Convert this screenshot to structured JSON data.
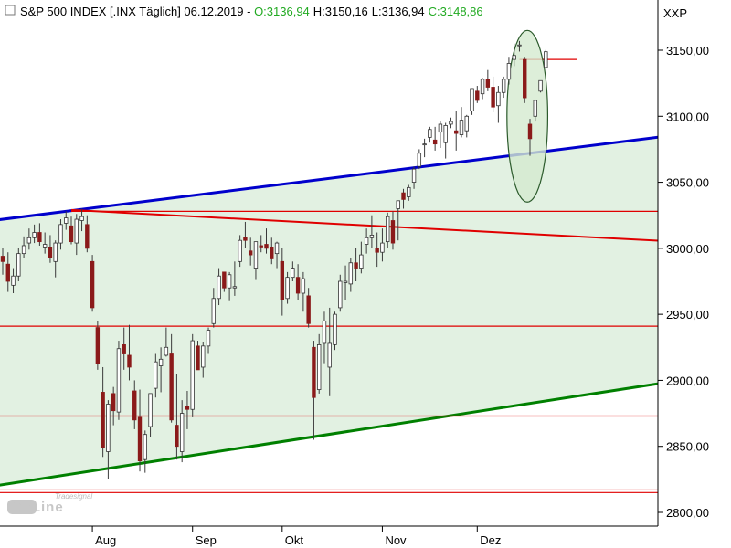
{
  "header": {
    "symbol": "S&P 500 INDEX [.INX  Täglich] 06.12.2019 - ",
    "open": "O:3136,94",
    "high": "H:3150,16",
    "low": "L:3136,94",
    "close": "C:3148,86",
    "exchange": "XXP"
  },
  "branding": {
    "logo_text": "OnLine",
    "logo_sub": "Tradesignal"
  },
  "colors": {
    "up": "#ffffff",
    "down": "#8b1a1a",
    "wick": "#3a3a3a",
    "blue_trend": "#0000cc",
    "green_trend": "#008000",
    "red_line": "#e00000",
    "fill": "#e2f1e2",
    "ellipse_fill": "#d4ead0"
  },
  "chart_data": {
    "type": "candlestick",
    "title": "S&P 500 INDEX [.INX  Täglich] 06.12.2019",
    "y_axis": {
      "min": 2800,
      "max": 3150,
      "ticks": [
        "2800,00",
        "2850,00",
        "2900,00",
        "2950,00",
        "3000,00",
        "3050,00",
        "3100,00",
        "3150,00"
      ],
      "position": "right"
    },
    "x_axis": {
      "labels": [
        "Aug",
        "Sep",
        "Okt",
        "Nov",
        "Dez"
      ]
    },
    "candles": [
      [
        2994,
        3000,
        2980,
        2990
      ],
      [
        2988,
        2997,
        2967,
        2975
      ],
      [
        2972,
        2985,
        2966,
        2979
      ],
      [
        2979,
        3000,
        2975,
        2996
      ],
      [
        2996,
        3009,
        2993,
        3002
      ],
      [
        3004,
        3015,
        2999,
        3008
      ],
      [
        3008,
        3018,
        3004,
        3012
      ],
      [
        3012,
        3019,
        3002,
        3005
      ],
      [
        3001,
        3012,
        2996,
        3003
      ],
      [
        3001,
        3010,
        2989,
        2993
      ],
      [
        2990,
        3006,
        2978,
        3004
      ],
      [
        3004,
        3022,
        2999,
        3018
      ],
      [
        3019,
        3028,
        3014,
        3023
      ],
      [
        3017,
        3024,
        3003,
        3005
      ],
      [
        3004,
        3026,
        2995,
        3022
      ],
      [
        3021,
        3030,
        3013,
        3024
      ],
      [
        3018,
        3025,
        2997,
        3000
      ],
      [
        2990,
        2995,
        2952,
        2955
      ],
      [
        2940,
        2945,
        2908,
        2913
      ],
      [
        2891,
        2910,
        2842,
        2849
      ],
      [
        2846,
        2885,
        2825,
        2882
      ],
      [
        2890,
        2895,
        2866,
        2877
      ],
      [
        2876,
        2930,
        2870,
        2924
      ],
      [
        2927,
        2940,
        2908,
        2920
      ],
      [
        2919,
        2942,
        2900,
        2910
      ],
      [
        2892,
        2900,
        2863,
        2870
      ],
      [
        2872,
        2893,
        2831,
        2839
      ],
      [
        2840,
        2862,
        2830,
        2859
      ],
      [
        2865,
        2890,
        2857,
        2890
      ],
      [
        2894,
        2920,
        2887,
        2914
      ],
      [
        2911,
        2925,
        2891,
        2916
      ],
      [
        2919,
        2940,
        2918,
        2925
      ],
      [
        2920,
        2935,
        2868,
        2870
      ],
      [
        2866,
        2905,
        2840,
        2850
      ],
      [
        2846,
        2885,
        2838,
        2875
      ],
      [
        2880,
        2892,
        2863,
        2878
      ],
      [
        2878,
        2935,
        2872,
        2930
      ],
      [
        2926,
        2930,
        2908,
        2908
      ],
      [
        2910,
        2929,
        2902,
        2926
      ],
      [
        2926,
        2940,
        2920,
        2938
      ],
      [
        2943,
        2970,
        2940,
        2962
      ],
      [
        2962,
        2985,
        2957,
        2979
      ],
      [
        2982,
        2981,
        2967,
        2970
      ],
      [
        2970,
        2982,
        2960,
        2980
      ],
      [
        2970,
        2990,
        2964,
        2971
      ],
      [
        2990,
        3010,
        2986,
        3006
      ],
      [
        3008,
        3020,
        3000,
        3006
      ],
      [
        2998,
        3008,
        2987,
        2995
      ],
      [
        2985,
        3005,
        2976,
        3005
      ],
      [
        3002,
        3010,
        2997,
        3001
      ],
      [
        3003,
        3015,
        2996,
        3000
      ],
      [
        3001,
        3008,
        2988,
        2992
      ],
      [
        2996,
        3005,
        2985,
        3004
      ],
      [
        2990,
        3000,
        2949,
        2961
      ],
      [
        2962,
        2982,
        2958,
        2978
      ],
      [
        2978,
        2990,
        2975,
        2985
      ],
      [
        2978,
        2988,
        2961,
        2966
      ],
      [
        2966,
        2982,
        2952,
        2977
      ],
      [
        2964,
        2970,
        2940,
        2943
      ],
      [
        2925,
        2930,
        2855,
        2887
      ],
      [
        2893,
        2935,
        2890,
        2927
      ],
      [
        2928,
        2952,
        2913,
        2945
      ],
      [
        2910,
        2955,
        2888,
        2928
      ],
      [
        2927,
        2952,
        2923,
        2950
      ],
      [
        2955,
        2980,
        2952,
        2975
      ],
      [
        2974,
        2987,
        2961,
        2975
      ],
      [
        2973,
        2993,
        2967,
        2989
      ],
      [
        2989,
        3000,
        2975,
        2985
      ],
      [
        2985,
        3005,
        2981,
        2995
      ],
      [
        3003,
        3015,
        2996,
        3008
      ],
      [
        3008,
        3025,
        3000,
        3010
      ],
      [
        3000,
        3012,
        2986,
        2997
      ],
      [
        2997,
        3015,
        2990,
        3004
      ],
      [
        3005,
        3027,
        3000,
        3024
      ],
      [
        3021,
        3028,
        2999,
        3004
      ],
      [
        3030,
        3035,
        3006,
        3036
      ],
      [
        3042,
        3045,
        3030,
        3037
      ],
      [
        3039,
        3048,
        3036,
        3046
      ],
      [
        3050,
        3062,
        3045,
        3060
      ],
      [
        3062,
        3075,
        3060,
        3072
      ],
      [
        3079,
        3083,
        3069,
        3079
      ],
      [
        3084,
        3092,
        3080,
        3090
      ],
      [
        3082,
        3092,
        3074,
        3079
      ],
      [
        3088,
        3096,
        3076,
        3094
      ],
      [
        3080,
        3095,
        3068,
        3093
      ],
      [
        3094,
        3099,
        3091,
        3096
      ],
      [
        3089,
        3104,
        3074,
        3087
      ],
      [
        3086,
        3107,
        3084,
        3097
      ],
      [
        3089,
        3101,
        3084,
        3100
      ],
      [
        3104,
        3120,
        3101,
        3121
      ],
      [
        3119,
        3123,
        3110,
        3112
      ],
      [
        3117,
        3129,
        3113,
        3128
      ],
      [
        3128,
        3135,
        3119,
        3122
      ],
      [
        3122,
        3130,
        3103,
        3107
      ],
      [
        3108,
        3123,
        3095,
        3118
      ],
      [
        3118,
        3130,
        3114,
        3128
      ],
      [
        3128,
        3145,
        3124,
        3140
      ],
      [
        3143,
        3155,
        3138,
        3146
      ],
      [
        3154,
        3157,
        3149,
        3154
      ],
      [
        3143,
        3145,
        3110,
        3114
      ],
      [
        3094,
        3098,
        3070,
        3083
      ],
      [
        3100,
        3112,
        3096,
        3112
      ],
      [
        3119,
        3127,
        3118,
        3127
      ],
      [
        3136.94,
        3150.16,
        3136.94,
        3148.86
      ]
    ],
    "lines": [
      {
        "name": "blue-uptrend",
        "from": [
          0,
          3022
        ],
        "to": [
          104,
          3074
        ]
      },
      {
        "name": "green-uptrend",
        "from": [
          0,
          2821
        ],
        "to": [
          104,
          2885
        ]
      },
      {
        "name": "red-downtrend",
        "from": [
          13,
          3029
        ],
        "to": [
          104,
          3010
        ]
      },
      {
        "name": "red-level-3028",
        "from": [
          13,
          3028
        ],
        "to": [
          104,
          3028
        ]
      },
      {
        "name": "red-level-2941",
        "from": [
          0,
          2941
        ],
        "to": [
          104,
          2941
        ]
      },
      {
        "name": "red-level-2873",
        "from": [
          0,
          2873
        ],
        "to": [
          104,
          2873
        ]
      },
      {
        "name": "red-level-2817",
        "from": [
          0,
          2817
        ],
        "to": [
          104,
          2817
        ]
      },
      {
        "name": "red-level-2815",
        "from": [
          0,
          2815
        ],
        "to": [
          104,
          2815
        ]
      },
      {
        "name": "red-level-3143",
        "from": [
          98,
          3143
        ],
        "to": [
          109,
          3143
        ]
      }
    ],
    "highlight": {
      "name": "ellipse-recent",
      "center": [
        99.5,
        3100
      ],
      "half_width_bars": 3,
      "half_height": 65
    },
    "x_label_bars": [
      17,
      36,
      53,
      72,
      90
    ]
  }
}
